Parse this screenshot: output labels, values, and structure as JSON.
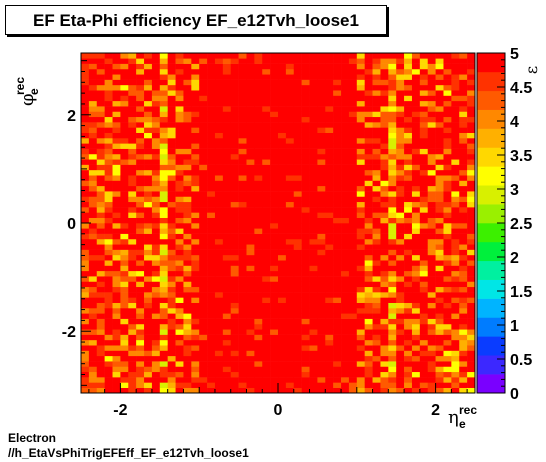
{
  "chart_data": {
    "type": "heatmap",
    "title": "EF Eta-Phi efficiency EF_e12Tvh_loose1",
    "xlabel": "η",
    "xlabel_sup": "rec",
    "xlabel_sub": "e",
    "ylabel": "φ",
    "ylabel_sup": "rec",
    "ylabel_sub": "e",
    "zlabel": "ε",
    "xlim": [
      -2.5,
      2.5
    ],
    "ylim": [
      -3.1416,
      3.1416
    ],
    "zlim": [
      0,
      5
    ],
    "x_ticks": [
      -2,
      0,
      2
    ],
    "y_ticks": [
      -2,
      0,
      2
    ],
    "z_ticks": [
      "0",
      "0.5",
      "1",
      "1.5",
      "2",
      "2.5",
      "3",
      "3.5",
      "4",
      "4.5",
      "5"
    ],
    "nbins_x": 50,
    "nbins_y": 64,
    "z_summary": {
      "central_region_eta_abs_lt_1": 4.9,
      "crack_region_eta_abs_1.37_to_1.52": 4.0,
      "forward_region_eta_abs_gt_1.52": 4.5,
      "typical_range": [
        3.5,
        5.0
      ]
    },
    "palette": [
      "#7a00ff",
      "#3c28ff",
      "#0a3cff",
      "#007cff",
      "#00b4ff",
      "#00e6e6",
      "#00f0a0",
      "#00f03c",
      "#3cf000",
      "#9af000",
      "#d8f000",
      "#ffff00",
      "#ffd800",
      "#ffb000",
      "#ff8800",
      "#ff5a00",
      "#ff3200",
      "#ff0000"
    ]
  },
  "labels": {
    "title": "EF Eta-Phi efficiency EF_e12Tvh_loose1",
    "footer_line1": "Electron",
    "footer_line2": "//h_EtaVsPhiTrigEFEff_EF_e12Tvh_loose1"
  }
}
